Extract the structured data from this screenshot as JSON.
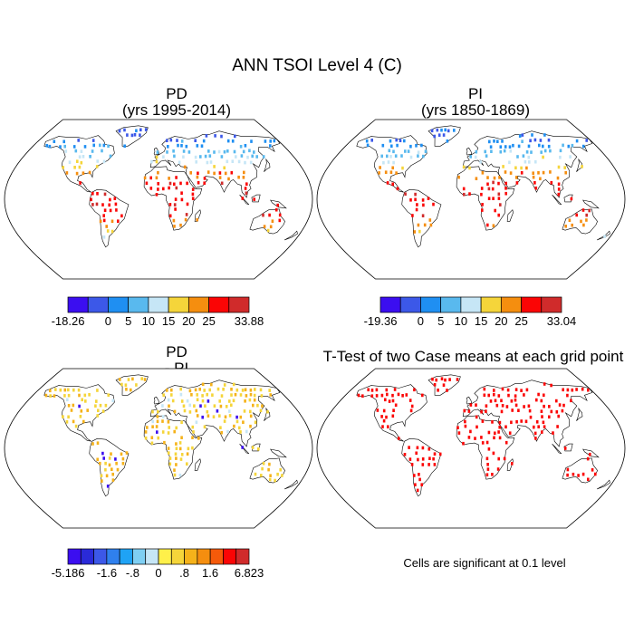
{
  "title": "ANN TSOI Level 4 (C)",
  "colors": {
    "ocean": "#ffffff",
    "coast": "#000000",
    "scale1": [
      "#3b0ef0",
      "#3c58e8",
      "#1f8ff2",
      "#59b9ee",
      "#c6e6f6",
      "#f5d53a",
      "#f58e0f",
      "#fb0505",
      "#d02b2b"
    ],
    "scale2": [
      "#3b0ef0",
      "#2a2ad8",
      "#3c58e8",
      "#2f80ee",
      "#1fa3f5",
      "#7fcff3",
      "#c6e6f6",
      "#fff04a",
      "#f5d53a",
      "#f5b21a",
      "#f58e0f",
      "#f55a0a",
      "#fb0505",
      "#d02b2b"
    ]
  },
  "panels": [
    {
      "id": "pd",
      "title_line1": "PD",
      "title_line2": "(yrs 1995-2014)",
      "colorbar": {
        "min_label": "-18.26",
        "max_label": "33.88",
        "ticks": [
          "0",
          "5",
          "10",
          "15",
          "20",
          "25"
        ]
      }
    },
    {
      "id": "pi",
      "title_line1": "PI",
      "title_line2": "(yrs 1850-1869)",
      "colorbar": {
        "min_label": "-19.36",
        "max_label": "33.04",
        "ticks": [
          "0",
          "5",
          "10",
          "15",
          "20",
          "25"
        ]
      }
    },
    {
      "id": "diff",
      "title_line1": "PD",
      "title_line2": "- PI",
      "colorbar": {
        "min_label": "-5.186",
        "max_label": "6.823",
        "ticks": [
          "-1.6",
          "-.8",
          "0",
          ".8",
          "1.6"
        ]
      }
    },
    {
      "id": "ttest",
      "title_line1": "T-Test of two Case means at each grid point",
      "note": "Cells are significant at 0.1 level"
    }
  ]
}
